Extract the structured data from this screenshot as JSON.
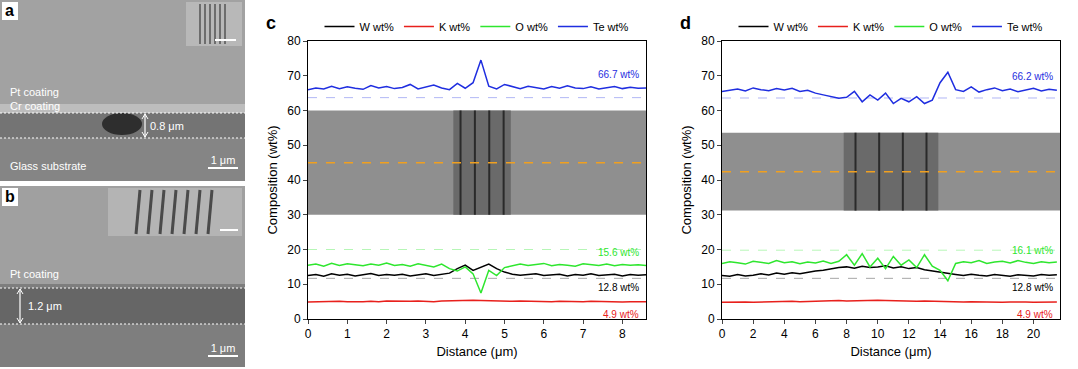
{
  "images": [
    {
      "panel": "a",
      "labels": [
        "Pt coating",
        "Cr coating",
        "0.8 μm",
        "Glass substrate"
      ],
      "scale_bar": "1 μm"
    },
    {
      "panel": "b",
      "labels": [
        "Pt coating",
        "1.2 μm"
      ],
      "scale_bar": "1 μm"
    }
  ],
  "chart_data": [
    {
      "panel": "c",
      "type": "line",
      "x_label": "Distance (μm)",
      "y_label": "Composition (wt%)",
      "xlim": [
        0,
        8.6
      ],
      "xticks": [
        0,
        1,
        2,
        3,
        4,
        5,
        6,
        7,
        8
      ],
      "ylim": [
        0,
        80
      ],
      "yticks": [
        0,
        10,
        20,
        30,
        40,
        50,
        60,
        70,
        80
      ],
      "grid": false,
      "legend": "top",
      "x": [
        0,
        0.2,
        0.4,
        0.6,
        0.8,
        1,
        1.2,
        1.4,
        1.6,
        1.8,
        2,
        2.2,
        2.4,
        2.6,
        2.8,
        3,
        3.2,
        3.4,
        3.6,
        3.8,
        4,
        4.2,
        4.4,
        4.6,
        4.8,
        5,
        5.2,
        5.4,
        5.6,
        5.8,
        6,
        6.2,
        6.4,
        6.6,
        6.8,
        7,
        7.2,
        7.4,
        7.6,
        7.8,
        8,
        8.2,
        8.4,
        8.6
      ],
      "series": [
        {
          "name": "W wt%",
          "color": "#000000",
          "reference": 11.7,
          "mean": 12.8,
          "mean_label": "12.8 wt%",
          "values": [
            12.5,
            12.8,
            12.3,
            13.0,
            12.6,
            12.9,
            12.4,
            12.7,
            13.1,
            12.5,
            12.8,
            12.6,
            12.9,
            12.4,
            12.7,
            13.0,
            12.5,
            12.8,
            13.2,
            14.5,
            15.5,
            14.0,
            15.0,
            15.8,
            14.5,
            13.5,
            12.9,
            12.6,
            12.8,
            13.0,
            12.5,
            12.7,
            12.9,
            12.4,
            12.8,
            12.6,
            13.0,
            12.5,
            12.7,
            12.9,
            12.4,
            12.8,
            12.6,
            12.7
          ]
        },
        {
          "name": "K wt%",
          "color": "#e8201c",
          "mean": 4.9,
          "mean_label": "4.9 wt%",
          "values": [
            4.9,
            5.0,
            4.9,
            5.0,
            5.1,
            5.0,
            4.9,
            5.0,
            5.1,
            5.0,
            5.2,
            5.1,
            5.0,
            5.1,
            5.2,
            5.1,
            5.0,
            5.2,
            5.3,
            5.2,
            5.3,
            5.4,
            5.3,
            5.2,
            5.3,
            5.2,
            5.1,
            5.2,
            5.1,
            5.0,
            5.1,
            5.0,
            5.1,
            5.0,
            4.9,
            5.0,
            5.1,
            5.0,
            4.9,
            5.0,
            4.9,
            5.0,
            4.9,
            5.0
          ]
        },
        {
          "name": "O wt%",
          "color": "#2ee62e",
          "reference": 20.0,
          "mean": 15.6,
          "mean_label": "15.6 wt%",
          "values": [
            15.5,
            15.8,
            15.2,
            16.0,
            15.4,
            15.9,
            15.6,
            15.3,
            15.8,
            15.5,
            16.1,
            15.4,
            15.7,
            15.2,
            15.9,
            15.5,
            15.0,
            15.8,
            14.5,
            13.8,
            15.0,
            13.0,
            7.5,
            14.0,
            12.5,
            14.8,
            15.3,
            15.8,
            15.4,
            15.6,
            16.0,
            15.3,
            15.7,
            15.5,
            15.2,
            15.9,
            15.6,
            15.4,
            15.8,
            15.3,
            15.7,
            15.5,
            15.6,
            15.4
          ]
        },
        {
          "name": "Te wt%",
          "color": "#1f2ee0",
          "reference": 63.7,
          "mean": 66.7,
          "mean_label": "66.7 wt%",
          "values": [
            66.0,
            66.5,
            66.2,
            67.0,
            66.3,
            66.8,
            66.4,
            66.1,
            67.2,
            66.5,
            66.9,
            66.3,
            66.6,
            67.5,
            66.2,
            66.8,
            67.3,
            66.5,
            66.0,
            67.8,
            66.4,
            68.0,
            74.5,
            67.0,
            66.2,
            67.5,
            66.8,
            66.3,
            67.0,
            66.6,
            66.2,
            66.9,
            66.4,
            67.1,
            66.5,
            66.3,
            66.8,
            66.2,
            66.6,
            66.9,
            66.3,
            66.7,
            66.4,
            66.5
          ]
        }
      ]
    },
    {
      "panel": "d",
      "type": "line",
      "x_label": "Distance (μm)",
      "y_label": "Composition (wt%)",
      "xlim": [
        0,
        21.7
      ],
      "xticks": [
        0,
        2,
        4,
        6,
        8,
        10,
        12,
        14,
        16,
        18,
        20
      ],
      "ylim": [
        0,
        80
      ],
      "yticks": [
        0,
        10,
        20,
        30,
        40,
        50,
        60,
        70,
        80
      ],
      "grid": false,
      "legend": "top",
      "x": [
        0,
        0.5,
        1,
        1.5,
        2,
        2.5,
        3,
        3.5,
        4,
        4.5,
        5,
        5.5,
        6,
        6.5,
        7,
        7.5,
        8,
        8.5,
        9,
        9.5,
        10,
        10.5,
        11,
        11.5,
        12,
        12.5,
        13,
        13.5,
        14,
        14.5,
        15,
        15.5,
        16,
        16.5,
        17,
        17.5,
        18,
        18.5,
        19,
        19.5,
        20,
        20.5,
        21,
        21.5
      ],
      "series": [
        {
          "name": "W wt%",
          "color": "#000000",
          "reference": 11.7,
          "mean": 12.8,
          "mean_label": "12.8 wt%",
          "values": [
            12.5,
            12.3,
            12.8,
            12.4,
            12.6,
            13.0,
            12.7,
            13.2,
            12.9,
            13.3,
            13.0,
            13.5,
            13.8,
            14.0,
            14.5,
            14.8,
            15.0,
            14.6,
            15.2,
            14.8,
            15.0,
            15.3,
            14.7,
            15.0,
            14.5,
            14.8,
            14.2,
            13.8,
            13.5,
            13.0,
            12.8,
            12.5,
            12.9,
            12.6,
            12.4,
            12.8,
            12.5,
            12.3,
            12.7,
            12.5,
            12.4,
            12.8,
            12.6,
            12.7
          ]
        },
        {
          "name": "K wt%",
          "color": "#e8201c",
          "mean": 4.9,
          "mean_label": "4.9 wt%",
          "values": [
            4.8,
            4.9,
            5.0,
            4.9,
            4.8,
            4.9,
            5.0,
            5.1,
            5.0,
            5.1,
            5.0,
            5.1,
            5.2,
            5.1,
            5.2,
            5.3,
            5.2,
            5.3,
            5.2,
            5.3,
            5.4,
            5.3,
            5.2,
            5.3,
            5.2,
            5.1,
            5.2,
            5.1,
            5.0,
            5.1,
            5.0,
            4.9,
            5.0,
            4.9,
            5.0,
            4.9,
            4.8,
            4.9,
            5.0,
            4.9,
            4.8,
            4.9,
            5.0,
            4.9
          ]
        },
        {
          "name": "O wt%",
          "color": "#2ee62e",
          "reference": 19.8,
          "mean": 16.1,
          "mean_label": "16.1 wt%",
          "values": [
            16.0,
            16.5,
            16.2,
            15.8,
            16.6,
            16.3,
            16.0,
            16.8,
            16.2,
            16.5,
            15.9,
            16.4,
            16.1,
            16.7,
            16.0,
            16.6,
            18.5,
            15.5,
            18.8,
            15.0,
            17.5,
            14.5,
            18.0,
            15.5,
            17.0,
            14.8,
            18.5,
            15.2,
            14.0,
            11.0,
            16.0,
            16.5,
            16.2,
            16.8,
            16.0,
            16.4,
            16.6,
            16.1,
            16.8,
            16.3,
            16.0,
            16.5,
            16.2,
            16.4
          ]
        },
        {
          "name": "Te wt%",
          "color": "#1f2ee0",
          "reference": 63.6,
          "mean": 66.2,
          "mean_label": "66.2 wt%",
          "values": [
            65.5,
            65.8,
            66.2,
            65.6,
            66.5,
            66.0,
            65.7,
            66.3,
            65.9,
            66.4,
            65.5,
            65.8,
            65.0,
            64.5,
            64.0,
            63.5,
            63.8,
            65.5,
            62.5,
            64.5,
            63.0,
            65.0,
            62.0,
            63.5,
            62.5,
            64.0,
            62.0,
            63.0,
            68.0,
            71.0,
            66.0,
            65.5,
            66.8,
            65.3,
            66.0,
            66.5,
            65.7,
            66.2,
            65.4,
            66.0,
            66.4,
            65.6,
            66.1,
            65.8
          ]
        }
      ]
    }
  ]
}
